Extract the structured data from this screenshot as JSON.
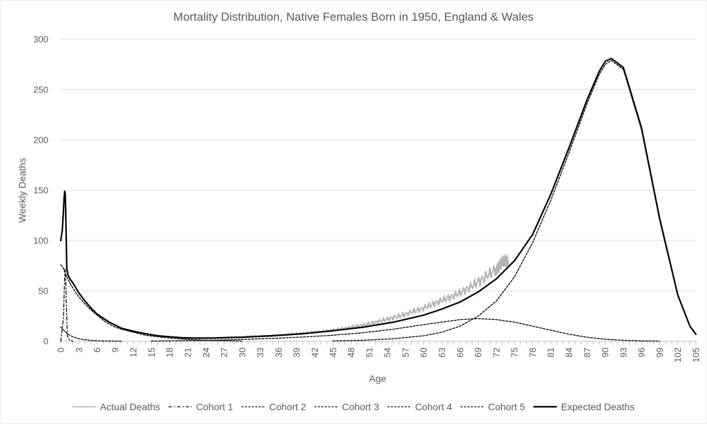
{
  "chart_data": {
    "type": "line",
    "title": "Mortality Distribution, Native Females Born in 1950, England & Wales",
    "xlabel": "Age",
    "ylabel": "Weekly Deaths",
    "xlim": [
      0,
      105
    ],
    "ylim": [
      0,
      300
    ],
    "x_ticks": [
      0,
      1,
      2,
      3,
      4,
      5,
      6,
      7,
      8,
      9,
      10,
      11,
      12,
      13,
      14,
      15,
      16,
      17,
      18,
      19,
      20,
      21,
      22,
      23,
      24,
      25,
      26,
      27,
      28,
      29,
      30,
      31,
      32,
      33,
      34,
      35,
      36,
      37,
      38,
      39,
      40,
      41,
      42,
      43,
      44,
      45,
      46,
      47,
      48,
      49,
      50,
      51,
      52,
      53,
      54,
      55,
      56,
      57,
      58,
      59,
      60,
      61,
      62,
      63,
      64,
      65,
      66,
      67,
      68,
      69,
      70,
      71,
      72,
      73,
      74,
      75,
      76,
      77,
      78,
      79,
      80,
      81,
      82,
      83,
      84,
      85,
      86,
      87,
      88,
      89,
      90,
      91,
      92,
      93,
      94,
      95,
      96,
      97,
      98,
      99,
      100,
      101,
      102,
      103,
      104,
      105
    ],
    "x_tick_labels": [
      "0",
      "",
      "",
      "3",
      "",
      "",
      "6",
      "",
      "",
      "9",
      "",
      "",
      "12",
      "",
      "",
      "15",
      "",
      "",
      "18",
      "",
      "",
      "21",
      "",
      "",
      "24",
      "",
      "",
      "27",
      "",
      "",
      "30",
      "",
      "",
      "33",
      "",
      "",
      "36",
      "",
      "",
      "39",
      "",
      "",
      "42",
      "",
      "",
      "45",
      "",
      "",
      "48",
      "",
      "",
      "51",
      "",
      "",
      "54",
      "",
      "",
      "57",
      "",
      "",
      "60",
      "",
      "",
      "63",
      "",
      "",
      "66",
      "",
      "",
      "69",
      "",
      "",
      "72",
      "",
      "",
      "75",
      "",
      "",
      "78",
      "",
      "",
      "81",
      "",
      "",
      "84",
      "",
      "",
      "87",
      "",
      "",
      "90",
      "",
      "",
      "93",
      "",
      "",
      "96",
      "",
      "",
      "99",
      "",
      "",
      "102",
      "",
      "",
      "105"
    ],
    "y_ticks": [
      0,
      50,
      100,
      150,
      200,
      250,
      300
    ],
    "y_tick_labels": [
      "0",
      "50",
      "100",
      "150",
      "200",
      "250",
      "300"
    ],
    "grid": "horizontal",
    "legend_position": "bottom",
    "series": [
      {
        "name": "Actual Deaths",
        "style": "solid-gray",
        "color": "#b4b4b4",
        "x": [
          20,
          22,
          24,
          26,
          28,
          30,
          32,
          34,
          36,
          38,
          40,
          42,
          44,
          46,
          48,
          50,
          52,
          54,
          56,
          58,
          60,
          62,
          64,
          66,
          68,
          70,
          72,
          73,
          74
        ],
        "y": [
          3,
          3,
          3,
          3,
          4,
          4,
          5,
          5,
          6,
          7,
          8,
          9,
          10,
          12,
          14,
          16,
          19,
          22,
          25,
          29,
          33,
          38,
          43,
          48,
          55,
          63,
          72,
          78,
          80
        ]
      },
      {
        "name": "Cohort 1",
        "style": "dash-dot",
        "color": "#000000",
        "x": [
          0,
          0.1,
          0.25,
          0.45,
          0.6,
          0.7,
          0.8,
          0.9,
          1.1,
          1.5,
          2
        ],
        "y": [
          0,
          5,
          12,
          25,
          55,
          72,
          68,
          40,
          5,
          1,
          0
        ]
      },
      {
        "name": "Cohort 2",
        "style": "dashed",
        "color": "#000000",
        "x": [
          0,
          0.3,
          0.6,
          1,
          1.5,
          2,
          2.5,
          3,
          4,
          5,
          6,
          7,
          8,
          9,
          10,
          12,
          14,
          16,
          18,
          20,
          22,
          25,
          30
        ],
        "y": [
          76,
          74,
          70,
          64,
          58,
          53,
          48,
          44,
          37,
          31,
          26,
          21,
          17,
          14,
          12,
          9,
          6,
          4.5,
          3.2,
          2.2,
          1.5,
          0.8,
          0.2
        ]
      },
      {
        "name": "Cohort 3",
        "style": "dashed",
        "color": "#000000",
        "x": [
          0,
          0.5,
          1,
          1.5,
          2,
          3,
          4,
          5,
          7,
          10
        ],
        "y": [
          14,
          11,
          8,
          6,
          4.5,
          2.5,
          1.5,
          0.8,
          0.3,
          0
        ]
      },
      {
        "name": "Cohort 4",
        "style": "dashed",
        "color": "#000000",
        "x": [
          15,
          20,
          25,
          30,
          35,
          40,
          45,
          50,
          55,
          60,
          63,
          66,
          69,
          72,
          75,
          78,
          81,
          84,
          87,
          90,
          93,
          96,
          99
        ],
        "y": [
          0.2,
          0.5,
          1,
          1.8,
          2.8,
          4.2,
          6,
          8.5,
          12,
          16.5,
          19,
          21.5,
          22.5,
          21.5,
          19,
          15,
          11,
          7,
          4,
          2,
          1,
          0.3,
          0.1
        ]
      },
      {
        "name": "Cohort 5",
        "style": "dashed",
        "color": "#000000",
        "x": [
          45,
          50,
          55,
          60,
          63,
          66,
          69,
          72,
          75,
          78,
          81,
          84,
          87,
          89,
          90,
          91,
          93,
          96,
          99,
          102,
          104,
          105
        ],
        "y": [
          0.3,
          1,
          2.5,
          5.5,
          9,
          15,
          25,
          40,
          64,
          98,
          140,
          187,
          236,
          265,
          275,
          279,
          270,
          210,
          120,
          45,
          15,
          7
        ]
      },
      {
        "name": "Expected Deaths",
        "style": "solid-thick",
        "color": "#000000",
        "x": [
          0,
          0.25,
          0.4,
          0.55,
          0.65,
          0.75,
          0.85,
          1,
          1.2,
          1.5,
          2,
          3,
          4,
          5,
          6,
          7,
          8,
          9,
          10,
          12,
          14,
          16,
          18,
          20,
          22,
          25,
          30,
          35,
          40,
          45,
          50,
          55,
          60,
          63,
          66,
          69,
          72,
          75,
          78,
          81,
          84,
          87,
          89,
          90,
          91,
          93,
          96,
          99,
          102,
          104,
          105
        ],
        "y": [
          100,
          110,
          125,
          142,
          149,
          146,
          120,
          72,
          66,
          62,
          58,
          48,
          40,
          33,
          27,
          23,
          19,
          16,
          13,
          10,
          7.5,
          5.5,
          4.5,
          3.5,
          3.2,
          3.2,
          4,
          5.5,
          7.5,
          10.5,
          14,
          19,
          26,
          32,
          39,
          49,
          62,
          80,
          106,
          146,
          192,
          240,
          268,
          278,
          281,
          272,
          212,
          122,
          46,
          15,
          7
        ]
      }
    ]
  }
}
